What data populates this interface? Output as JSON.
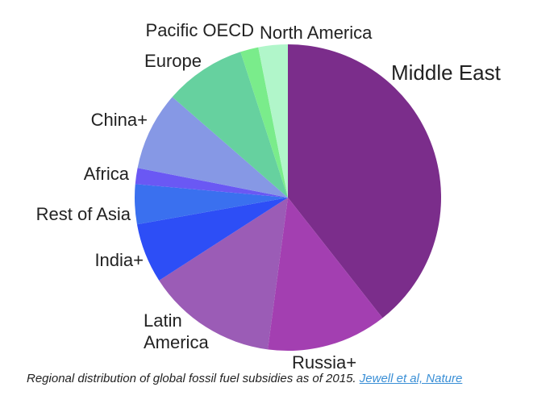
{
  "chart_data": {
    "type": "pie",
    "categories": [
      "Middle East",
      "Russia+",
      "Latin America",
      "India+",
      "Rest of Asia",
      "Africa",
      "China+",
      "Europe",
      "Pacific OECD",
      "North America"
    ],
    "values": [
      39.4,
      12.7,
      13.8,
      6.3,
      4.2,
      1.7,
      8.3,
      8.6,
      1.9,
      3.1
    ],
    "colors": [
      "#7b2d8b",
      "#a33fb1",
      "#9b5cb6",
      "#2d4ef6",
      "#3a70ef",
      "#6a58f4",
      "#8698e5",
      "#66d19f",
      "#7aec8b",
      "#b1f6ca"
    ],
    "caption": "Regional distribution of global fossil fuel subsidies as of 2015.",
    "source": "Jewell et al, Nature"
  }
}
